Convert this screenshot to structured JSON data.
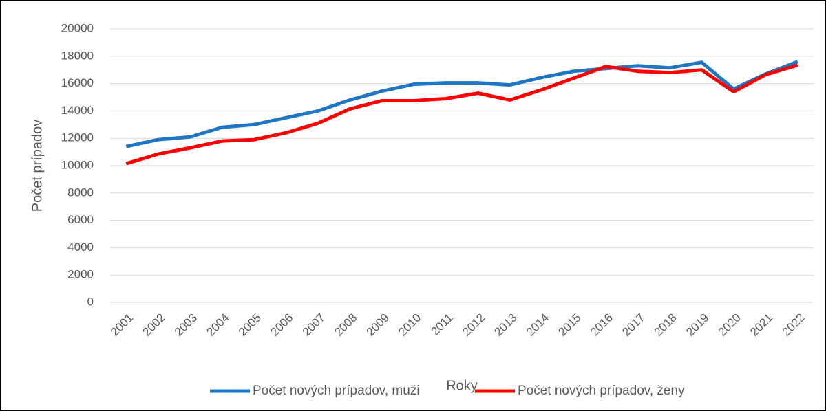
{
  "chart_data": {
    "type": "line",
    "xlabel": "Roky",
    "ylabel": "Počet prípadov",
    "categories": [
      "2001",
      "2002",
      "2003",
      "2004",
      "2005",
      "2006",
      "2007",
      "2008",
      "2009",
      "2010",
      "2011",
      "2012",
      "2013",
      "2014",
      "2015",
      "2016",
      "2017",
      "2018",
      "2019",
      "2020",
      "2021",
      "2022"
    ],
    "series": [
      {
        "name": "Počet nových prípadov, muži",
        "color": "#1f77c4",
        "values": [
          11400,
          11900,
          12100,
          12800,
          13000,
          13500,
          14000,
          14800,
          15450,
          15950,
          16050,
          16050,
          15900,
          16450,
          16900,
          17100,
          17300,
          17150,
          17550,
          15600,
          16700,
          17600
        ]
      },
      {
        "name": "Počet nových prípadov, ženy",
        "color": "#ff0000",
        "values": [
          10150,
          10850,
          11300,
          11800,
          11900,
          12400,
          13100,
          14150,
          14750,
          14750,
          14900,
          15300,
          14800,
          15550,
          16400,
          17250,
          16900,
          16800,
          17000,
          15400,
          16650,
          17350
        ]
      }
    ],
    "ylim": [
      0,
      20000
    ],
    "yticks": [
      0,
      2000,
      4000,
      6000,
      8000,
      10000,
      12000,
      14000,
      16000,
      18000,
      20000
    ],
    "grid": true,
    "legend": "bottom"
  }
}
